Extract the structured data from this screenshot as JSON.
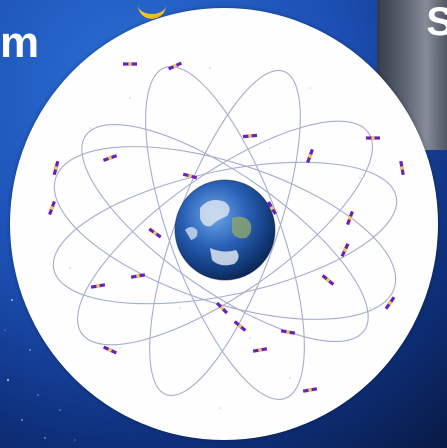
{
  "title_fragment_left": "m",
  "title_fragment_right": "S",
  "colors": {
    "background_blue": "#1c4fb3",
    "disc_white": "#fefefe",
    "orbit_line": "#9aa6c8",
    "satellite_panel": "#6a1fbf",
    "satellite_body": "#e6c760",
    "accent_yellow": "#f2c21a"
  },
  "illustration": {
    "subject": "gps-satellite-constellation",
    "center": "earth-globe"
  }
}
